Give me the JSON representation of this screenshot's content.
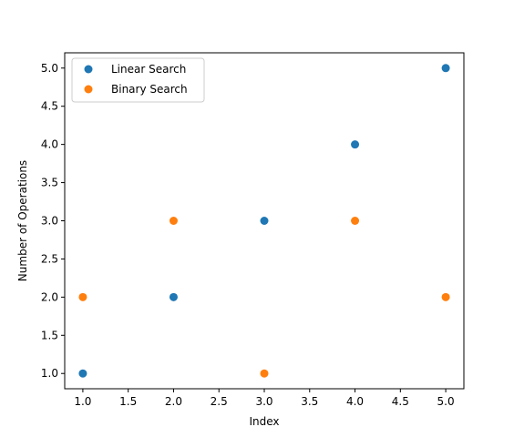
{
  "chart_data": {
    "type": "scatter",
    "xlabel": "Index",
    "ylabel": "Number of Operations",
    "xlim": [
      0.8,
      5.2
    ],
    "ylim": [
      0.8,
      5.2
    ],
    "xticks": [
      1.0,
      1.5,
      2.0,
      2.5,
      3.0,
      3.5,
      4.0,
      4.5,
      5.0
    ],
    "yticks": [
      1.0,
      1.5,
      2.0,
      2.5,
      3.0,
      3.5,
      4.0,
      4.5,
      5.0
    ],
    "grid": false,
    "legend_position": "top-left",
    "series": [
      {
        "name": "Linear Search",
        "color": "#1f77b4",
        "x": [
          1,
          2,
          3,
          4,
          5
        ],
        "y": [
          1,
          2,
          3,
          4,
          5
        ]
      },
      {
        "name": "Binary Search",
        "color": "#ff7f0e",
        "x": [
          1,
          2,
          3,
          4,
          5
        ],
        "y": [
          2,
          3,
          1,
          3,
          2
        ]
      }
    ]
  }
}
